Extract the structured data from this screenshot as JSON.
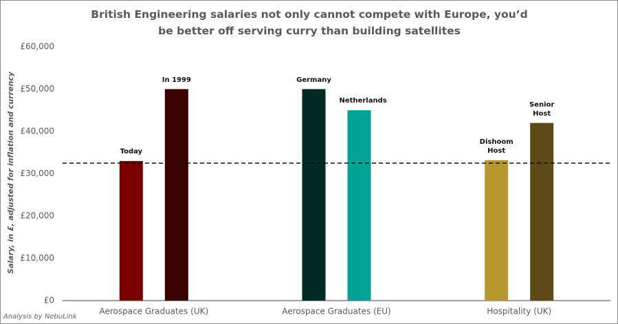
{
  "chart_data": {
    "type": "bar",
    "title": "British Engineering salaries not only cannot compete with Europe, you’d be better off serving curry than building satellites",
    "y_label": "Salary, in £, adjusted for inflation and currency",
    "footer": "Analysis by NebuLink",
    "ylim": [
      0,
      60000
    ],
    "yticks": [
      {
        "value": 0,
        "label": "£0"
      },
      {
        "value": 10000,
        "label": "£10,000"
      },
      {
        "value": 20000,
        "label": "£20,000"
      },
      {
        "value": 30000,
        "label": "£30,000"
      },
      {
        "value": 40000,
        "label": "£40,000"
      },
      {
        "value": 50000,
        "label": "£50,000"
      },
      {
        "value": 60000,
        "label": "£60,000"
      }
    ],
    "reference_line": 32500,
    "groups": [
      {
        "name": "Aerospace Graduates (UK)",
        "bars": [
          {
            "label": "Today",
            "value": 33000,
            "color": "#7a0000"
          },
          {
            "label": "In 1999",
            "value": 50000,
            "color": "#3d0000"
          }
        ]
      },
      {
        "name": "Aerospace Graduates (EU)",
        "bars": [
          {
            "label": "Germany",
            "value": 50000,
            "color": "#012a27"
          },
          {
            "label": "Netherlands",
            "value": 45000,
            "color": "#00a394"
          }
        ]
      },
      {
        "name": "Hospitality (UK)",
        "bars": [
          {
            "label": "Dishoom Host",
            "value": 33200,
            "color": "#b8972e"
          },
          {
            "label": "Senior Host",
            "value": 42000,
            "color": "#5c4a18"
          }
        ]
      }
    ]
  }
}
